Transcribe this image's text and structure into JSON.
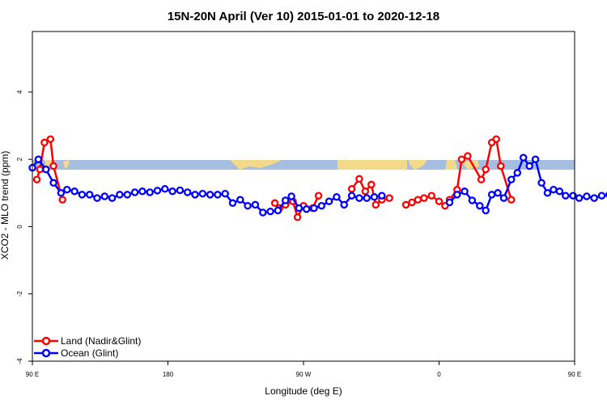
{
  "chart_data": {
    "type": "line",
    "title": "15N-20N April (Ver 10)   2015-01-01 to 2020-12-18",
    "xlabel": "Longitude (deg E)",
    "ylabel": "XCO2 - MLO trend (ppm)",
    "xlim": [
      90,
      450
    ],
    "ylim": [
      -4,
      5.8
    ],
    "x_ticks": [
      {
        "value": 90,
        "label": "90 E"
      },
      {
        "value": 180,
        "label": "180"
      },
      {
        "value": 270,
        "label": "90 W"
      },
      {
        "value": 360,
        "label": "0"
      },
      {
        "value": 450,
        "label": "90 E"
      },
      {
        "value": 540,
        "label": "180"
      }
    ],
    "y_ticks": [
      {
        "value": -4,
        "label": "-4"
      },
      {
        "value": -2,
        "label": "-2"
      },
      {
        "value": 0,
        "label": "0"
      },
      {
        "value": 2,
        "label": "2"
      },
      {
        "value": 4,
        "label": "4"
      }
    ],
    "grid": false,
    "legend_position": "bottom-left",
    "series": [
      {
        "name": "Land (Nadir&Glint)",
        "color": "#ff0000",
        "segments": [
          [
            [
              93,
              1.4
            ],
            [
              95,
              1.7
            ],
            [
              98,
              2.5
            ],
            [
              102,
              2.6
            ],
            [
              104,
              1.8
            ],
            [
              110,
              0.8
            ]
          ],
          [
            [
              251,
              0.7
            ],
            [
              254,
              0.55
            ],
            [
              258,
              0.65
            ],
            [
              263,
              0.75
            ],
            [
              266,
              0.28
            ],
            [
              270,
              0.62
            ],
            [
              276,
              0.55
            ],
            [
              280,
              0.92
            ]
          ],
          [
            [
              302,
              1.12
            ],
            [
              307,
              1.42
            ],
            [
              311,
              1.05
            ],
            [
              315,
              1.25
            ],
            [
              318,
              0.65
            ],
            [
              322,
              0.8
            ],
            [
              327,
              0.85
            ]
          ],
          [
            [
              338,
              0.65
            ],
            [
              342,
              0.72
            ],
            [
              346,
              0.8
            ],
            [
              350,
              0.85
            ],
            [
              355,
              0.92
            ],
            [
              360,
              0.75
            ],
            [
              364,
              0.62
            ],
            [
              367,
              0.8
            ],
            [
              372,
              1.1
            ],
            [
              375,
              2.0
            ],
            [
              379,
              2.1
            ],
            [
              388,
              1.4
            ],
            [
              391,
              1.7
            ],
            [
              395,
              2.5
            ],
            [
              398,
              2.6
            ],
            [
              401,
              1.8
            ],
            [
              408,
              0.8
            ]
          ]
        ]
      },
      {
        "name": "Ocean (Glint)",
        "color": "#0000ff",
        "segments": [
          [
            [
              90,
              1.75
            ],
            [
              94,
              2.0
            ],
            [
              99,
              1.7
            ],
            [
              104,
              1.3
            ],
            [
              109,
              1.0
            ],
            [
              113,
              1.1
            ],
            [
              118,
              1.05
            ],
            [
              123,
              0.95
            ],
            [
              128,
              0.95
            ],
            [
              133,
              0.85
            ],
            [
              138,
              0.9
            ],
            [
              143,
              0.85
            ],
            [
              148,
              0.95
            ],
            [
              153,
              0.95
            ],
            [
              158,
              1.02
            ],
            [
              163,
              1.05
            ],
            [
              168,
              1.02
            ],
            [
              173,
              1.07
            ],
            [
              178,
              1.12
            ],
            [
              183,
              1.05
            ],
            [
              188,
              1.08
            ],
            [
              193,
              1.02
            ],
            [
              198,
              0.95
            ],
            [
              203,
              0.98
            ],
            [
              208,
              0.95
            ],
            [
              213,
              0.95
            ],
            [
              218,
              0.98
            ],
            [
              223,
              0.7
            ],
            [
              228,
              0.8
            ],
            [
              233,
              0.62
            ],
            [
              238,
              0.65
            ],
            [
              243,
              0.42
            ],
            [
              248,
              0.45
            ],
            [
              253,
              0.48
            ],
            [
              258,
              0.78
            ],
            [
              262,
              0.9
            ],
            [
              267,
              0.55
            ],
            [
              272,
              0.52
            ],
            [
              277,
              0.55
            ],
            [
              282,
              0.62
            ],
            [
              287,
              0.75
            ],
            [
              292,
              0.88
            ],
            [
              297,
              0.65
            ],
            [
              302,
              0.92
            ],
            [
              307,
              0.85
            ],
            [
              312,
              0.85
            ],
            [
              317,
              0.88
            ],
            [
              322,
              0.92
            ]
          ],
          [
            [
              367,
              0.72
            ],
            [
              372,
              0.95
            ],
            [
              377,
              1.05
            ],
            [
              382,
              0.78
            ],
            [
              387,
              0.62
            ],
            [
              391,
              0.48
            ],
            [
              395,
              0.95
            ],
            [
              399,
              1.0
            ],
            [
              403,
              0.85
            ],
            [
              408,
              1.4
            ],
            [
              412,
              1.6
            ],
            [
              416,
              2.05
            ],
            [
              420,
              1.8
            ],
            [
              424,
              2.0
            ],
            [
              428,
              1.3
            ],
            [
              432,
              1.0
            ],
            [
              436,
              1.1
            ],
            [
              440,
              1.05
            ],
            [
              444,
              0.92
            ],
            [
              449,
              0.92
            ],
            [
              453,
              0.85
            ],
            [
              458,
              0.9
            ],
            [
              463,
              0.85
            ],
            [
              468,
              0.92
            ],
            [
              473,
              0.95
            ],
            [
              478,
              1.02
            ],
            [
              483,
              1.05
            ],
            [
              488,
              1.0
            ],
            [
              493,
              1.05
            ]
          ]
        ]
      }
    ]
  }
}
